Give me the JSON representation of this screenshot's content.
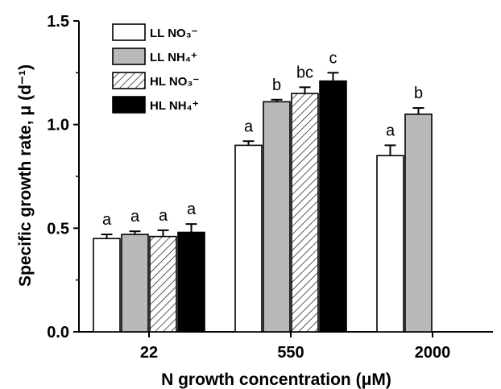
{
  "chart_data": {
    "type": "bar",
    "xlabel": "N growth concentration (μM)",
    "ylabel": "Specific growth rate, μ (d⁻¹)",
    "ylim": [
      0,
      1.5
    ],
    "yticks": [
      "0.0",
      "0.5",
      "1.0",
      "1.5"
    ],
    "categories": [
      "22",
      "550",
      "2000"
    ],
    "legend_position": "top-left",
    "grid": false,
    "series": [
      {
        "name": "LL NO₃⁻",
        "pattern": "open",
        "values": [
          0.45,
          0.9,
          0.85
        ],
        "errors": [
          0.02,
          0.02,
          0.05
        ],
        "letters": [
          "a",
          "a",
          "a"
        ]
      },
      {
        "name": "LL NH₄⁺",
        "pattern": "gray",
        "values": [
          0.47,
          1.11,
          1.05
        ],
        "errors": [
          0.015,
          0.01,
          0.03
        ],
        "letters": [
          "a",
          "b",
          "b"
        ]
      },
      {
        "name": "HL NO₃⁻",
        "pattern": "hatched",
        "values": [
          0.46,
          1.15,
          null
        ],
        "errors": [
          0.03,
          0.03,
          null
        ],
        "letters": [
          "a",
          "bc",
          null
        ]
      },
      {
        "name": "HL NH₄⁺",
        "pattern": "black",
        "values": [
          0.48,
          1.21,
          null
        ],
        "errors": [
          0.04,
          0.04,
          null
        ],
        "letters": [
          "a",
          "c",
          null
        ]
      }
    ]
  },
  "colors": {
    "gray": "#b9b9b9",
    "black": "#000000",
    "open": "#ffffff"
  }
}
